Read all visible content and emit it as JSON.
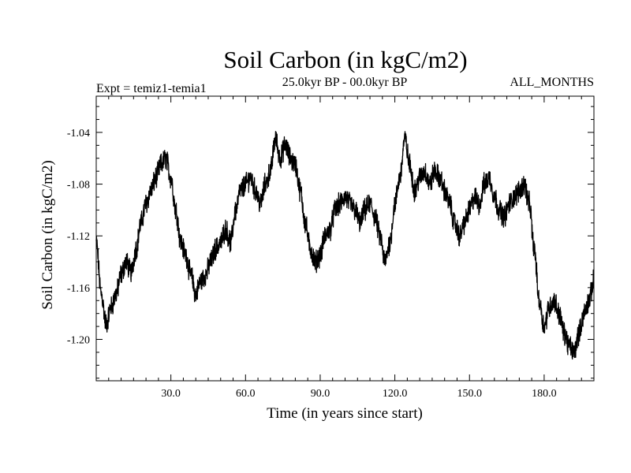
{
  "chart_data": {
    "type": "line",
    "title": "Soil Carbon (in kgC/m2)",
    "left_label": "Expt = temiz1-temia1",
    "center_label": "25.0kyr BP - 00.0kyr BP",
    "right_label": "ALL_MONTHS",
    "xlabel": "Time (in years since start)",
    "ylabel": "Soil Carbon (in kgC/m2)",
    "xlim": [
      0,
      200
    ],
    "ylim": [
      -1.232,
      -1.012
    ],
    "x_ticks": [
      30,
      60,
      90,
      120,
      150,
      180
    ],
    "x_tick_labels": [
      "30.0",
      "60.0",
      "90.0",
      "120.0",
      "150.0",
      "180.0"
    ],
    "y_ticks": [
      -1.04,
      -1.08,
      -1.12,
      -1.16,
      -1.2
    ],
    "y_tick_labels": [
      "-1.04",
      "-1.08",
      "-1.12",
      "-1.16",
      "-1.20"
    ],
    "grid": false,
    "series": [
      {
        "name": "Soil Carbon",
        "color": "#000000",
        "x": [
          0,
          2,
          4,
          6,
          8,
          10,
          12,
          14,
          16,
          18,
          20,
          22,
          24,
          26,
          28,
          30,
          32,
          34,
          36,
          38,
          40,
          42,
          44,
          46,
          48,
          50,
          52,
          54,
          56,
          58,
          60,
          62,
          64,
          66,
          68,
          70,
          72,
          74,
          76,
          78,
          80,
          82,
          84,
          86,
          88,
          90,
          92,
          94,
          96,
          98,
          100,
          102,
          104,
          106,
          108,
          110,
          112,
          114,
          116,
          118,
          120,
          122,
          124,
          126,
          128,
          130,
          132,
          134,
          136,
          138,
          140,
          142,
          144,
          146,
          148,
          150,
          152,
          154,
          156,
          158,
          160,
          162,
          164,
          166,
          168,
          170,
          172,
          174,
          176,
          178,
          180,
          182,
          184,
          186,
          188,
          190,
          192,
          194,
          196,
          198,
          200
        ],
        "values": [
          -1.125,
          -1.165,
          -1.188,
          -1.175,
          -1.165,
          -1.15,
          -1.14,
          -1.148,
          -1.13,
          -1.11,
          -1.095,
          -1.085,
          -1.075,
          -1.065,
          -1.06,
          -1.075,
          -1.1,
          -1.125,
          -1.135,
          -1.15,
          -1.165,
          -1.155,
          -1.15,
          -1.14,
          -1.13,
          -1.125,
          -1.115,
          -1.125,
          -1.1,
          -1.085,
          -1.08,
          -1.075,
          -1.085,
          -1.095,
          -1.08,
          -1.07,
          -1.045,
          -1.06,
          -1.05,
          -1.06,
          -1.065,
          -1.085,
          -1.11,
          -1.13,
          -1.14,
          -1.135,
          -1.12,
          -1.115,
          -1.1,
          -1.095,
          -1.09,
          -1.095,
          -1.1,
          -1.11,
          -1.1,
          -1.095,
          -1.105,
          -1.12,
          -1.14,
          -1.125,
          -1.095,
          -1.075,
          -1.045,
          -1.065,
          -1.085,
          -1.075,
          -1.07,
          -1.08,
          -1.07,
          -1.075,
          -1.085,
          -1.095,
          -1.11,
          -1.12,
          -1.11,
          -1.1,
          -1.09,
          -1.095,
          -1.08,
          -1.075,
          -1.09,
          -1.1,
          -1.105,
          -1.095,
          -1.09,
          -1.085,
          -1.08,
          -1.095,
          -1.13,
          -1.17,
          -1.19,
          -1.175,
          -1.17,
          -1.18,
          -1.195,
          -1.205,
          -1.21,
          -1.195,
          -1.18,
          -1.17,
          -1.155
        ]
      }
    ]
  }
}
